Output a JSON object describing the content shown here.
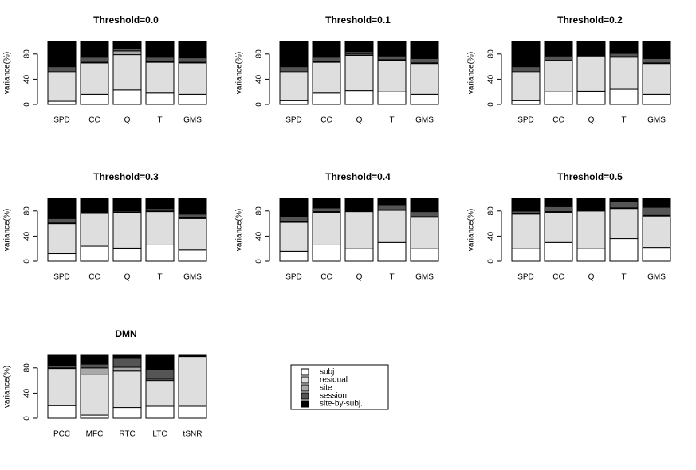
{
  "chart_data": [
    {
      "type": "bar",
      "stacked": true,
      "title": "Threshold=0.0",
      "ylabel": "variance(%)",
      "categories": [
        "SPD",
        "CC",
        "Q",
        "T",
        "GMS"
      ],
      "ylim": [
        0,
        100
      ],
      "yticks": [
        0,
        40,
        80
      ],
      "series": [
        {
          "color": "#ffffff",
          "values": [
            5,
            16,
            23,
            18,
            16
          ]
        },
        {
          "color": "#dedede",
          "values": [
            46,
            50,
            56,
            49,
            50
          ]
        },
        {
          "color": "#a8a8a8",
          "values": [
            1,
            1,
            6,
            1,
            1
          ]
        },
        {
          "color": "#555555",
          "values": [
            8,
            8,
            4,
            7,
            7
          ]
        },
        {
          "color": "#000000",
          "values": [
            40,
            25,
            11,
            25,
            26
          ]
        }
      ]
    },
    {
      "type": "bar",
      "stacked": true,
      "title": "Threshold=0.1",
      "ylabel": "variance(%)",
      "categories": [
        "SPD",
        "CC",
        "Q",
        "T",
        "GMS"
      ],
      "ylim": [
        0,
        100
      ],
      "yticks": [
        0,
        40,
        80
      ],
      "series": [
        {
          "color": "#ffffff",
          "values": [
            6,
            18,
            22,
            20,
            16
          ]
        },
        {
          "color": "#dedede",
          "values": [
            45,
            49,
            56,
            50,
            49
          ]
        },
        {
          "color": "#a8a8a8",
          "values": [
            1,
            1,
            2,
            1,
            1
          ]
        },
        {
          "color": "#555555",
          "values": [
            8,
            7,
            4,
            6,
            7
          ]
        },
        {
          "color": "#000000",
          "values": [
            40,
            25,
            16,
            23,
            27
          ]
        }
      ]
    },
    {
      "type": "bar",
      "stacked": true,
      "title": "Threshold=0.2",
      "ylabel": "variance(%)",
      "categories": [
        "SPD",
        "CC",
        "Q",
        "T",
        "GMS"
      ],
      "ylim": [
        0,
        100
      ],
      "yticks": [
        0,
        40,
        80
      ],
      "series": [
        {
          "color": "#ffffff",
          "values": [
            6,
            20,
            21,
            24,
            16
          ]
        },
        {
          "color": "#dedede",
          "values": [
            45,
            49,
            56,
            51,
            49
          ]
        },
        {
          "color": "#a8a8a8",
          "values": [
            1,
            1,
            1,
            1,
            1
          ]
        },
        {
          "color": "#555555",
          "values": [
            8,
            7,
            1,
            5,
            7
          ]
        },
        {
          "color": "#000000",
          "values": [
            40,
            23,
            21,
            19,
            27
          ]
        }
      ]
    },
    {
      "type": "bar",
      "stacked": true,
      "title": "Threshold=0.3",
      "ylabel": "variance(%)",
      "categories": [
        "SPD",
        "CC",
        "Q",
        "T",
        "GMS"
      ],
      "ylim": [
        0,
        100
      ],
      "yticks": [
        0,
        40,
        80
      ],
      "series": [
        {
          "color": "#ffffff",
          "values": [
            12,
            24,
            21,
            26,
            18
          ]
        },
        {
          "color": "#dedede",
          "values": [
            48,
            52,
            56,
            53,
            50
          ]
        },
        {
          "color": "#a8a8a8",
          "values": [
            1,
            1,
            1,
            1,
            1
          ]
        },
        {
          "color": "#555555",
          "values": [
            7,
            1,
            2,
            4,
            6
          ]
        },
        {
          "color": "#000000",
          "values": [
            32,
            22,
            20,
            16,
            25
          ]
        }
      ]
    },
    {
      "type": "bar",
      "stacked": true,
      "title": "Threshold=0.4",
      "ylabel": "variance(%)",
      "categories": [
        "SPD",
        "CC",
        "Q",
        "T",
        "GMS"
      ],
      "ylim": [
        0,
        100
      ],
      "yticks": [
        0,
        40,
        80
      ],
      "series": [
        {
          "color": "#ffffff",
          "values": [
            16,
            26,
            20,
            30,
            20
          ]
        },
        {
          "color": "#dedede",
          "values": [
            46,
            52,
            59,
            51,
            50
          ]
        },
        {
          "color": "#a8a8a8",
          "values": [
            1,
            1,
            1,
            1,
            1
          ]
        },
        {
          "color": "#555555",
          "values": [
            8,
            6,
            0,
            8,
            8
          ]
        },
        {
          "color": "#000000",
          "values": [
            29,
            15,
            20,
            10,
            21
          ]
        }
      ]
    },
    {
      "type": "bar",
      "stacked": true,
      "title": "Threshold=0.5",
      "ylabel": "variance(%)",
      "categories": [
        "SPD",
        "CC",
        "Q",
        "T",
        "GMS"
      ],
      "ylim": [
        0,
        100
      ],
      "yticks": [
        0,
        40,
        80
      ],
      "series": [
        {
          "color": "#ffffff",
          "values": [
            20,
            30,
            20,
            36,
            22
          ]
        },
        {
          "color": "#dedede",
          "values": [
            55,
            48,
            60,
            48,
            50
          ]
        },
        {
          "color": "#a8a8a8",
          "values": [
            1,
            1,
            1,
            1,
            1
          ]
        },
        {
          "color": "#555555",
          "values": [
            4,
            8,
            0,
            10,
            13
          ]
        },
        {
          "color": "#000000",
          "values": [
            20,
            13,
            19,
            5,
            14
          ]
        }
      ]
    },
    {
      "type": "bar",
      "stacked": true,
      "title": "DMN",
      "ylabel": "variance(%)",
      "categories": [
        "PCC",
        "MFC",
        "RTC",
        "LTC",
        "tSNR"
      ],
      "ylim": [
        0,
        100
      ],
      "yticks": [
        0,
        40,
        80
      ],
      "series": [
        {
          "color": "#ffffff",
          "values": [
            20,
            5,
            17,
            19,
            19
          ]
        },
        {
          "color": "#dedede",
          "values": [
            59,
            65,
            58,
            41,
            79
          ]
        },
        {
          "color": "#a8a8a8",
          "values": [
            1,
            10,
            6,
            2,
            0
          ]
        },
        {
          "color": "#555555",
          "values": [
            4,
            6,
            14,
            15,
            0
          ]
        },
        {
          "color": "#000000",
          "values": [
            16,
            14,
            5,
            23,
            2
          ]
        }
      ]
    }
  ],
  "legend": [
    "subj",
    "residual",
    "site",
    "session",
    "site-by-subj."
  ]
}
